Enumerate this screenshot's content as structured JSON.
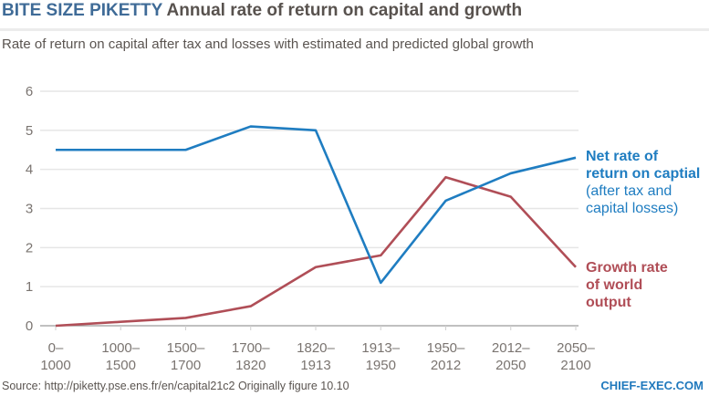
{
  "header": {
    "brand": "BITE SIZE PIKETTY",
    "title": "Annual rate of return on capital and growth"
  },
  "subtitle": "Rate of return on capital after tax and losses with estimated and predicted global growth",
  "footer": {
    "source": "Source: http://piketty.pse.ens.fr/en/capital21c2   Originally figure 10.10",
    "site": "CHIEF-EXEC.COM"
  },
  "colors": {
    "return": "#1f7dc1",
    "growth": "#b04e57",
    "brand": "#3f6b97"
  },
  "chart_data": {
    "type": "line",
    "title": "Annual rate of return on capital and growth",
    "subtitle": "Rate of return on capital after tax and losses with estimated and predicted global growth",
    "xlabel": "",
    "ylabel": "",
    "ylim": [
      0,
      6
    ],
    "yticks": [
      "0",
      "1",
      "2",
      "3",
      "4",
      "5",
      "6"
    ],
    "grid": true,
    "categories": [
      [
        "0–",
        "1000"
      ],
      [
        "1000–",
        "1500"
      ],
      [
        "1500–",
        "1700"
      ],
      [
        "1700–",
        "1820"
      ],
      [
        "1820–",
        "1913"
      ],
      [
        "1913–",
        "1950"
      ],
      [
        "1950–",
        "2012"
      ],
      [
        "2012–",
        "2050"
      ],
      [
        "2050–",
        "2100"
      ]
    ],
    "series": [
      {
        "name": "Net rate of return on captial (after tax and capital losses)",
        "label_lines_bold": [
          "Net rate of",
          "return on captial"
        ],
        "label_lines": [
          "(after tax and",
          "capital losses)"
        ],
        "values": [
          4.5,
          4.5,
          4.5,
          5.1,
          5.0,
          1.1,
          3.2,
          3.9,
          4.3
        ]
      },
      {
        "name": "Growth rate of world output",
        "label_lines_bold": [
          "Growth rate",
          "of world",
          "output"
        ],
        "label_lines": [],
        "values": [
          0.0,
          0.1,
          0.2,
          0.5,
          1.5,
          1.8,
          3.8,
          3.3,
          1.5
        ]
      }
    ],
    "legend": "right (inline labels)"
  }
}
